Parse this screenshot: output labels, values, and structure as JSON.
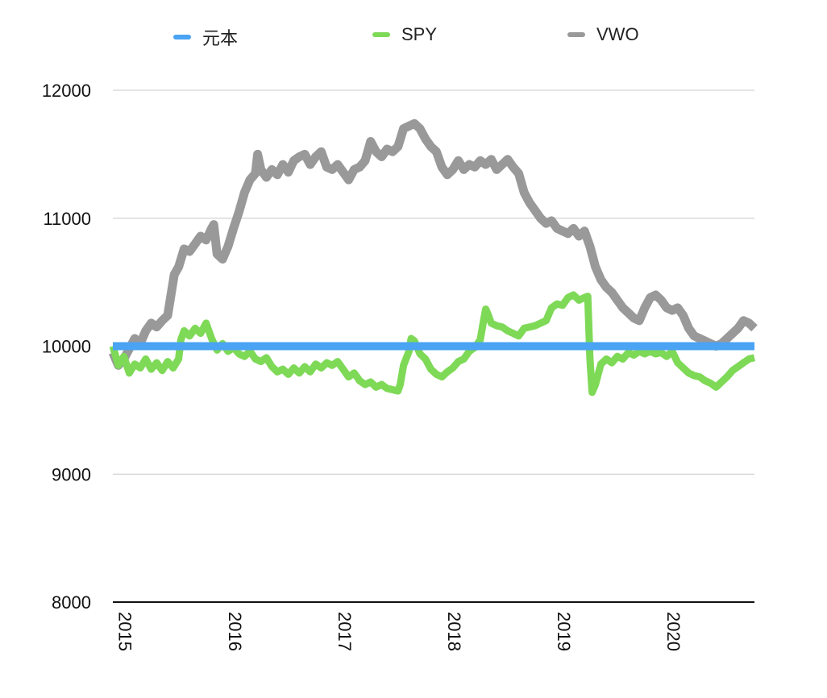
{
  "chart_data": {
    "type": "line",
    "title": "",
    "xlabel": "",
    "ylabel": "",
    "ylim": [
      8000,
      12000
    ],
    "xlim": [
      2015,
      2020.85
    ],
    "yticks": [
      8000,
      9000,
      10000,
      11000,
      12000
    ],
    "xticks": [
      "2015",
      "2016",
      "2017",
      "2018",
      "2019",
      "2020"
    ],
    "grid": true,
    "legend_position": "top",
    "series": [
      {
        "name": "元本",
        "color": "#4aa3f3",
        "points": [
          [
            2015.0,
            10000
          ],
          [
            2020.85,
            10000
          ]
        ]
      },
      {
        "name": "SPY",
        "color": "#7ed957",
        "points": [
          [
            2015.0,
            10000
          ],
          [
            2015.05,
            9850
          ],
          [
            2015.1,
            9920
          ],
          [
            2015.15,
            9790
          ],
          [
            2015.2,
            9860
          ],
          [
            2015.25,
            9830
          ],
          [
            2015.3,
            9900
          ],
          [
            2015.35,
            9820
          ],
          [
            2015.4,
            9870
          ],
          [
            2015.45,
            9810
          ],
          [
            2015.5,
            9880
          ],
          [
            2015.55,
            9830
          ],
          [
            2015.6,
            9900
          ],
          [
            2015.62,
            10050
          ],
          [
            2015.65,
            10120
          ],
          [
            2015.7,
            10080
          ],
          [
            2015.75,
            10140
          ],
          [
            2015.8,
            10100
          ],
          [
            2015.85,
            10180
          ],
          [
            2015.9,
            10060
          ],
          [
            2015.95,
            9970
          ],
          [
            2016.0,
            10020
          ],
          [
            2016.05,
            9960
          ],
          [
            2016.1,
            9990
          ],
          [
            2016.15,
            9940
          ],
          [
            2016.2,
            9920
          ],
          [
            2016.25,
            9960
          ],
          [
            2016.3,
            9900
          ],
          [
            2016.35,
            9880
          ],
          [
            2016.4,
            9910
          ],
          [
            2016.45,
            9840
          ],
          [
            2016.5,
            9800
          ],
          [
            2016.55,
            9820
          ],
          [
            2016.6,
            9780
          ],
          [
            2016.65,
            9830
          ],
          [
            2016.7,
            9790
          ],
          [
            2016.75,
            9840
          ],
          [
            2016.8,
            9800
          ],
          [
            2016.85,
            9860
          ],
          [
            2016.9,
            9830
          ],
          [
            2016.95,
            9870
          ],
          [
            2017.0,
            9850
          ],
          [
            2017.05,
            9880
          ],
          [
            2017.1,
            9820
          ],
          [
            2017.15,
            9760
          ],
          [
            2017.2,
            9790
          ],
          [
            2017.25,
            9730
          ],
          [
            2017.3,
            9700
          ],
          [
            2017.35,
            9720
          ],
          [
            2017.4,
            9680
          ],
          [
            2017.45,
            9700
          ],
          [
            2017.5,
            9670
          ],
          [
            2017.55,
            9660
          ],
          [
            2017.6,
            9650
          ],
          [
            2017.62,
            9700
          ],
          [
            2017.65,
            9850
          ],
          [
            2017.7,
            9960
          ],
          [
            2017.72,
            10060
          ],
          [
            2017.75,
            10040
          ],
          [
            2017.8,
            9940
          ],
          [
            2017.85,
            9900
          ],
          [
            2017.9,
            9820
          ],
          [
            2017.95,
            9780
          ],
          [
            2018.0,
            9760
          ],
          [
            2018.05,
            9800
          ],
          [
            2018.1,
            9830
          ],
          [
            2018.15,
            9880
          ],
          [
            2018.2,
            9900
          ],
          [
            2018.25,
            9960
          ],
          [
            2018.3,
            9990
          ],
          [
            2018.35,
            10050
          ],
          [
            2018.38,
            10200
          ],
          [
            2018.4,
            10290
          ],
          [
            2018.42,
            10250
          ],
          [
            2018.45,
            10180
          ],
          [
            2018.5,
            10160
          ],
          [
            2018.55,
            10150
          ],
          [
            2018.6,
            10120
          ],
          [
            2018.65,
            10100
          ],
          [
            2018.7,
            10080
          ],
          [
            2018.75,
            10140
          ],
          [
            2018.8,
            10150
          ],
          [
            2018.85,
            10160
          ],
          [
            2018.9,
            10180
          ],
          [
            2018.95,
            10200
          ],
          [
            2019.0,
            10300
          ],
          [
            2019.05,
            10330
          ],
          [
            2019.1,
            10320
          ],
          [
            2019.15,
            10380
          ],
          [
            2019.2,
            10400
          ],
          [
            2019.25,
            10360
          ],
          [
            2019.3,
            10380
          ],
          [
            2019.33,
            10390
          ],
          [
            2019.35,
            9900
          ],
          [
            2019.37,
            9640
          ],
          [
            2019.4,
            9700
          ],
          [
            2019.45,
            9860
          ],
          [
            2019.5,
            9900
          ],
          [
            2019.55,
            9870
          ],
          [
            2019.6,
            9920
          ],
          [
            2019.65,
            9900
          ],
          [
            2019.7,
            9950
          ],
          [
            2019.75,
            9930
          ],
          [
            2019.8,
            9960
          ],
          [
            2019.85,
            9940
          ],
          [
            2019.9,
            9960
          ],
          [
            2019.95,
            9940
          ],
          [
            2020.0,
            9950
          ],
          [
            2020.05,
            9920
          ],
          [
            2020.1,
            9960
          ],
          [
            2020.15,
            9870
          ],
          [
            2020.2,
            9830
          ],
          [
            2020.25,
            9790
          ],
          [
            2020.3,
            9770
          ],
          [
            2020.35,
            9760
          ],
          [
            2020.4,
            9730
          ],
          [
            2020.45,
            9710
          ],
          [
            2020.5,
            9680
          ],
          [
            2020.55,
            9720
          ],
          [
            2020.6,
            9760
          ],
          [
            2020.65,
            9810
          ],
          [
            2020.7,
            9840
          ],
          [
            2020.75,
            9870
          ],
          [
            2020.8,
            9900
          ],
          [
            2020.85,
            9910
          ]
        ]
      },
      {
        "name": "VWO",
        "color": "#999999",
        "points": [
          [
            2015.0,
            9950
          ],
          [
            2015.05,
            9850
          ],
          [
            2015.1,
            9900
          ],
          [
            2015.15,
            9980
          ],
          [
            2015.2,
            10060
          ],
          [
            2015.25,
            10020
          ],
          [
            2015.3,
            10120
          ],
          [
            2015.35,
            10180
          ],
          [
            2015.4,
            10150
          ],
          [
            2015.45,
            10200
          ],
          [
            2015.5,
            10240
          ],
          [
            2015.53,
            10400
          ],
          [
            2015.56,
            10560
          ],
          [
            2015.6,
            10620
          ],
          [
            2015.65,
            10760
          ],
          [
            2015.7,
            10740
          ],
          [
            2015.75,
            10800
          ],
          [
            2015.8,
            10860
          ],
          [
            2015.85,
            10830
          ],
          [
            2015.9,
            10920
          ],
          [
            2015.92,
            10950
          ],
          [
            2015.95,
            10720
          ],
          [
            2016.0,
            10680
          ],
          [
            2016.05,
            10780
          ],
          [
            2016.1,
            10920
          ],
          [
            2016.15,
            11050
          ],
          [
            2016.2,
            11200
          ],
          [
            2016.25,
            11300
          ],
          [
            2016.3,
            11350
          ],
          [
            2016.32,
            11500
          ],
          [
            2016.35,
            11380
          ],
          [
            2016.4,
            11320
          ],
          [
            2016.45,
            11380
          ],
          [
            2016.5,
            11340
          ],
          [
            2016.55,
            11420
          ],
          [
            2016.6,
            11360
          ],
          [
            2016.65,
            11450
          ],
          [
            2016.7,
            11480
          ],
          [
            2016.75,
            11500
          ],
          [
            2016.8,
            11420
          ],
          [
            2016.85,
            11480
          ],
          [
            2016.9,
            11520
          ],
          [
            2016.95,
            11400
          ],
          [
            2017.0,
            11380
          ],
          [
            2017.05,
            11420
          ],
          [
            2017.1,
            11360
          ],
          [
            2017.15,
            11300
          ],
          [
            2017.2,
            11380
          ],
          [
            2017.25,
            11400
          ],
          [
            2017.3,
            11450
          ],
          [
            2017.35,
            11600
          ],
          [
            2017.4,
            11520
          ],
          [
            2017.45,
            11480
          ],
          [
            2017.5,
            11540
          ],
          [
            2017.55,
            11520
          ],
          [
            2017.6,
            11560
          ],
          [
            2017.65,
            11700
          ],
          [
            2017.7,
            11720
          ],
          [
            2017.75,
            11740
          ],
          [
            2017.8,
            11700
          ],
          [
            2017.85,
            11620
          ],
          [
            2017.9,
            11560
          ],
          [
            2017.95,
            11520
          ],
          [
            2018.0,
            11400
          ],
          [
            2018.05,
            11340
          ],
          [
            2018.1,
            11380
          ],
          [
            2018.15,
            11450
          ],
          [
            2018.2,
            11380
          ],
          [
            2018.25,
            11420
          ],
          [
            2018.3,
            11400
          ],
          [
            2018.35,
            11450
          ],
          [
            2018.4,
            11420
          ],
          [
            2018.45,
            11460
          ],
          [
            2018.5,
            11380
          ],
          [
            2018.55,
            11420
          ],
          [
            2018.6,
            11460
          ],
          [
            2018.65,
            11400
          ],
          [
            2018.7,
            11350
          ],
          [
            2018.75,
            11200
          ],
          [
            2018.8,
            11120
          ],
          [
            2018.85,
            11060
          ],
          [
            2018.9,
            11000
          ],
          [
            2018.95,
            10960
          ],
          [
            2019.0,
            10980
          ],
          [
            2019.05,
            10920
          ],
          [
            2019.1,
            10900
          ],
          [
            2019.15,
            10880
          ],
          [
            2019.2,
            10920
          ],
          [
            2019.25,
            10860
          ],
          [
            2019.3,
            10900
          ],
          [
            2019.35,
            10780
          ],
          [
            2019.4,
            10620
          ],
          [
            2019.45,
            10520
          ],
          [
            2019.5,
            10460
          ],
          [
            2019.55,
            10420
          ],
          [
            2019.6,
            10360
          ],
          [
            2019.65,
            10300
          ],
          [
            2019.7,
            10260
          ],
          [
            2019.75,
            10220
          ],
          [
            2019.8,
            10200
          ],
          [
            2019.85,
            10300
          ],
          [
            2019.9,
            10380
          ],
          [
            2019.95,
            10400
          ],
          [
            2020.0,
            10360
          ],
          [
            2020.05,
            10300
          ],
          [
            2020.1,
            10280
          ],
          [
            2020.15,
            10300
          ],
          [
            2020.2,
            10240
          ],
          [
            2020.25,
            10140
          ],
          [
            2020.3,
            10080
          ],
          [
            2020.35,
            10060
          ],
          [
            2020.4,
            10040
          ],
          [
            2020.45,
            10020
          ],
          [
            2020.5,
            10000
          ],
          [
            2020.55,
            10020
          ],
          [
            2020.6,
            10060
          ],
          [
            2020.65,
            10100
          ],
          [
            2020.7,
            10140
          ],
          [
            2020.75,
            10200
          ],
          [
            2020.8,
            10180
          ],
          [
            2020.85,
            10140
          ]
        ]
      }
    ]
  }
}
